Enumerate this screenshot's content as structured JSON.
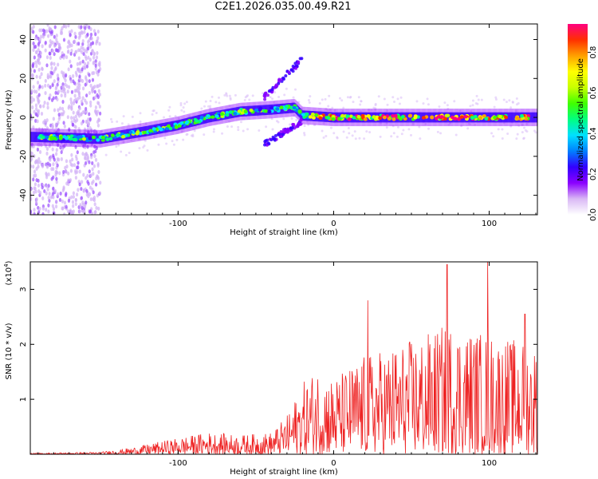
{
  "title": "C2E1.2026.035.00.49.R21",
  "chart_data": [
    {
      "type": "heatmap",
      "name": "spectrogram",
      "xlabel": "Height of straight line (km)",
      "ylabel": "Frequency (Hz)",
      "xlim": [
        -195,
        131
      ],
      "ylim": [
        -50,
        48
      ],
      "x_ticks": [
        -100,
        0,
        100
      ],
      "x_tick_labels": [
        "-100",
        "0",
        "100"
      ],
      "y_ticks": [
        -40,
        -20,
        0,
        20,
        40
      ],
      "y_tick_labels": [
        "-40",
        "-20",
        "0",
        "20",
        "40"
      ],
      "colorbar": {
        "label": "Normalized spectral amplitude",
        "range": [
          0,
          0.94
        ],
        "ticks": [
          0,
          0.2,
          0.4,
          0.6,
          0.8
        ],
        "tick_labels": [
          "0.0",
          "0.2",
          "0.4",
          "0.6",
          "0.8"
        ],
        "colormap": [
          "#ffffff",
          "#d9b8f5",
          "#8b00ff",
          "#3300ff",
          "#0080ff",
          "#00e0ff",
          "#00ff80",
          "#40ff00",
          "#c8ff00",
          "#ffff00",
          "#ffa000",
          "#ff3000",
          "#ff0080"
        ]
      },
      "ridge": {
        "description_points_x": [
          -195,
          -150,
          -120,
          -100,
          -80,
          -60,
          -40,
          -25,
          -20,
          0,
          40,
          80,
          131
        ],
        "description_points_freq": [
          -10,
          -11,
          -7,
          -4,
          0,
          3,
          4,
          5,
          1,
          0,
          0,
          0,
          0
        ]
      }
    },
    {
      "type": "line",
      "name": "snr",
      "xlabel": "Height of straight line (km)",
      "ylabel": "SNR (10 * v/v)",
      "multiplier_label": "(x10",
      "multiplier_exp": "4",
      "multiplier_close": ")",
      "xlim": [
        -195,
        131
      ],
      "ylim": [
        0,
        3.5
      ],
      "x_ticks": [
        -100,
        0,
        100
      ],
      "x_tick_labels": [
        "-100",
        "0",
        "100"
      ],
      "y_ticks": [
        1,
        2,
        3
      ],
      "y_tick_labels": [
        "1",
        "2",
        "3"
      ],
      "color": "#ee2222",
      "envelope_x": [
        -195,
        -150,
        -130,
        -100,
        -80,
        -60,
        -40,
        -30,
        -20,
        -10,
        0,
        20,
        40,
        60,
        75,
        100,
        131
      ],
      "envelope_y": [
        0.02,
        0.04,
        0.12,
        0.3,
        0.4,
        0.35,
        0.4,
        0.7,
        1.3,
        1.6,
        1.4,
        1.8,
        2.0,
        2.2,
        2.4,
        2.2,
        2.0
      ],
      "peaks": [
        {
          "x": 22,
          "y": 2.8
        },
        {
          "x": 73,
          "y": 3.45
        },
        {
          "x": 99,
          "y": 3.5
        },
        {
          "x": 123,
          "y": 2.55
        }
      ]
    }
  ]
}
